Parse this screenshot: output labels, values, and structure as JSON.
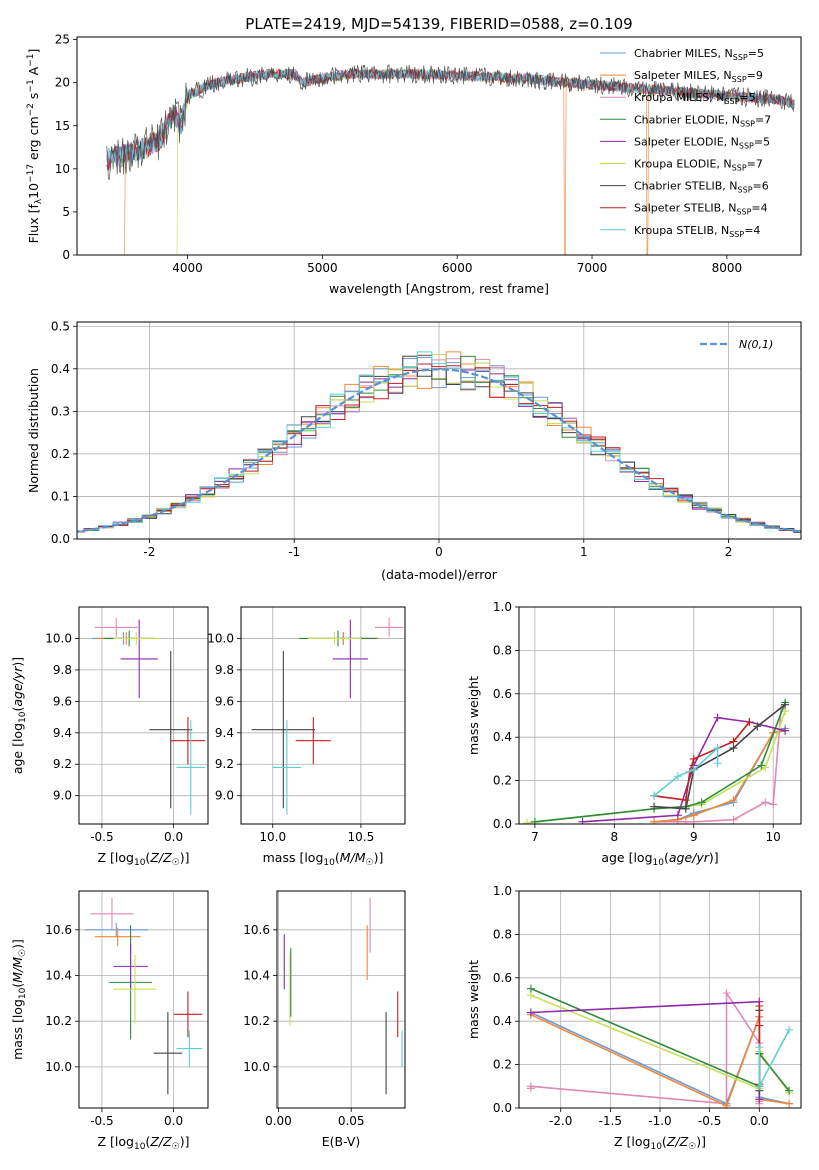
{
  "colors": {
    "Chabrier MILES": "#6a9bd8",
    "Salpeter MILES": "#f0873a",
    "Kroupa MILES": "#e08ab6",
    "Chabrier ELODIE": "#2e8b3c",
    "Salpeter ELODIE": "#8e2aa8",
    "Kroupa ELODIE": "#c6e05a",
    "Chabrier STELIB": "#444444",
    "Salpeter STELIB": "#c41e1e",
    "Kroupa STELIB": "#5ed0d4"
  },
  "chart_data": [
    {
      "id": "spectrum",
      "type": "line",
      "title": "PLATE=2419, MJD=54139, FIBERID=0588, z=0.109",
      "xlabel": "wavelength [Angstrom, rest frame]",
      "ylabel": "Flux [f_λ10^-17 erg cm^-2 s^-1 A^-1]",
      "xlim": [
        3180,
        8550
      ],
      "ylim": [
        0,
        25.3
      ],
      "xticks": [
        4000,
        5000,
        6000,
        7000,
        8000
      ],
      "yticks": [
        0,
        5,
        10,
        15,
        20,
        25
      ],
      "legend": [
        {
          "label": "Chabrier MILES, N",
          "sub": "SSP",
          "val": "=5",
          "color": "Chabrier MILES"
        },
        {
          "label": "Salpeter MILES, N",
          "sub": "SSP",
          "val": "=9",
          "color": "Salpeter MILES"
        },
        {
          "label": "Kroupa MILES, N",
          "sub": "SSP",
          "val": "=5",
          "color": "Kroupa MILES"
        },
        {
          "label": "Chabrier ELODIE, N",
          "sub": "SSP",
          "val": "=7",
          "color": "Chabrier ELODIE"
        },
        {
          "label": "Salpeter ELODIE, N",
          "sub": "SSP",
          "val": "=5",
          "color": "Salpeter ELODIE"
        },
        {
          "label": "Kroupa ELODIE, N",
          "sub": "SSP",
          "val": "=7",
          "color": "Kroupa ELODIE"
        },
        {
          "label": "Chabrier STELIB, N",
          "sub": "SSP",
          "val": "=6",
          "color": "Chabrier STELIB"
        },
        {
          "label": "Salpeter STELIB, N",
          "sub": "SSP",
          "val": "=4",
          "color": "Salpeter STELIB"
        },
        {
          "label": "Kroupa STELIB, N",
          "sub": "SSP",
          "val": "=4",
          "color": "Kroupa STELIB"
        }
      ],
      "continuum": [
        [
          3400,
          11.0
        ],
        [
          3700,
          12.5
        ],
        [
          3800,
          13.5
        ],
        [
          3900,
          16.5
        ],
        [
          3950,
          15.0
        ],
        [
          4000,
          18.5
        ],
        [
          4200,
          20.0
        ],
        [
          4400,
          20.5
        ],
        [
          4600,
          21.0
        ],
        [
          4800,
          21.0
        ],
        [
          4850,
          20.0
        ],
        [
          5000,
          20.5
        ],
        [
          5200,
          21.0
        ],
        [
          5500,
          21.0
        ],
        [
          5800,
          21.0
        ],
        [
          6000,
          20.8
        ],
        [
          6500,
          20.5
        ],
        [
          6800,
          20.0
        ],
        [
          7200,
          19.5
        ],
        [
          7600,
          19.0
        ],
        [
          8000,
          18.5
        ],
        [
          8400,
          18.0
        ],
        [
          8500,
          17.5
        ]
      ],
      "cutoffs": [
        {
          "series": "Salpeter MILES",
          "x": 3530
        },
        {
          "series": "Kroupa ELODIE",
          "x": 3920
        },
        {
          "series": "Salpeter MILES",
          "x": 6800
        },
        {
          "series": "Salpeter MILES",
          "x": 7410
        }
      ]
    },
    {
      "id": "residuals",
      "type": "histogram",
      "xlabel": "(data-model)/error",
      "ylabel": "Normed distribution",
      "xlim": [
        -2.5,
        2.5
      ],
      "ylim": [
        0,
        0.51
      ],
      "xticks": [
        -2,
        -1,
        0,
        1,
        2
      ],
      "yticks": [
        0.0,
        0.1,
        0.2,
        0.3,
        0.4,
        0.5
      ],
      "bin_width": 0.1,
      "legend": "N(0,1)",
      "gaussian": {
        "mu": 0,
        "sigma": 1,
        "color": "#5b8fd6"
      }
    },
    {
      "id": "age-vs-Z",
      "type": "errorbar",
      "xlabel": "Z [log10(Z/Z☉)]",
      "ylabel": "age [log10(age/yr)]",
      "xlim": [
        -0.66,
        0.24
      ],
      "ylim": [
        8.82,
        10.2
      ],
      "xticks": [
        -0.5,
        0.0
      ],
      "yticks": [
        9.0,
        9.2,
        9.4,
        9.6,
        9.8,
        10.0
      ],
      "points": [
        {
          "series": "Chabrier MILES",
          "x": -0.35,
          "xerr": 0.22,
          "y": 10.0,
          "yerr": 0.04
        },
        {
          "series": "Salpeter MILES",
          "x": -0.33,
          "xerr": 0.2,
          "y": 10.0,
          "yerr": 0.04
        },
        {
          "series": "Kroupa MILES",
          "x": -0.4,
          "xerr": 0.15,
          "y": 10.07,
          "yerr": 0.06
        },
        {
          "series": "Chabrier ELODIE",
          "x": -0.31,
          "xerr": 0.18,
          "y": 10.0,
          "yerr": 0.05
        },
        {
          "series": "Salpeter ELODIE",
          "x": -0.24,
          "xerr": 0.13,
          "y": 9.87,
          "yerr": 0.25
        },
        {
          "series": "Kroupa ELODIE",
          "x": -0.26,
          "xerr": 0.16,
          "y": 10.0,
          "yerr": 0.04
        },
        {
          "series": "Chabrier STELIB",
          "x": -0.02,
          "xerr": 0.15,
          "y": 9.42,
          "yerr": 0.5
        },
        {
          "series": "Salpeter STELIB",
          "x": 0.1,
          "xerr": 0.12,
          "y": 9.35,
          "yerr": 0.15
        },
        {
          "series": "Kroupa STELIB",
          "x": 0.12,
          "xerr": 0.1,
          "y": 9.18,
          "yerr": 0.3
        }
      ]
    },
    {
      "id": "age-vs-mass",
      "type": "errorbar",
      "xlabel": "mass [log10(M/M☉)]",
      "ylabel": "",
      "xlim": [
        9.82,
        10.75
      ],
      "ylim": [
        8.82,
        10.2
      ],
      "xticks": [
        10.0,
        10.5
      ],
      "yticks": [
        9.0,
        9.2,
        9.4,
        9.6,
        9.8,
        10.0
      ],
      "points": [
        {
          "series": "Chabrier MILES",
          "x": 10.4,
          "xerr": 0.2,
          "y": 10.0,
          "yerr": 0.04
        },
        {
          "series": "Salpeter MILES",
          "x": 10.4,
          "xerr": 0.2,
          "y": 10.0,
          "yerr": 0.04
        },
        {
          "series": "Kroupa MILES",
          "x": 10.66,
          "xerr": 0.08,
          "y": 10.07,
          "yerr": 0.06
        },
        {
          "series": "Chabrier ELODIE",
          "x": 10.37,
          "xerr": 0.22,
          "y": 10.0,
          "yerr": 0.05
        },
        {
          "series": "Salpeter ELODIE",
          "x": 10.44,
          "xerr": 0.1,
          "y": 9.87,
          "yerr": 0.25
        },
        {
          "series": "Kroupa ELODIE",
          "x": 10.35,
          "xerr": 0.15,
          "y": 10.0,
          "yerr": 0.04
        },
        {
          "series": "Chabrier STELIB",
          "x": 10.06,
          "xerr": 0.18,
          "y": 9.42,
          "yerr": 0.5
        },
        {
          "series": "Salpeter STELIB",
          "x": 10.23,
          "xerr": 0.1,
          "y": 9.35,
          "yerr": 0.15
        },
        {
          "series": "Kroupa STELIB",
          "x": 10.08,
          "xerr": 0.08,
          "y": 9.18,
          "yerr": 0.3
        }
      ]
    },
    {
      "id": "massweight-vs-age",
      "type": "line",
      "xlabel": "age [log10(age/yr)]",
      "ylabel": "mass weight",
      "xlim": [
        6.8,
        10.35
      ],
      "ylim": [
        0,
        1.0
      ],
      "xticks": [
        7,
        8,
        9,
        10
      ],
      "yticks": [
        0.0,
        0.2,
        0.4,
        0.6,
        0.8,
        1.0
      ],
      "series": [
        {
          "series": "Kroupa MILES",
          "x": [
            8.5,
            8.9,
            9.0,
            9.5,
            9.9,
            10.0,
            10.1
          ],
          "y": [
            0.01,
            0.01,
            0.01,
            0.02,
            0.1,
            0.09,
            0.53
          ]
        },
        {
          "series": "Chabrier MILES",
          "x": [
            8.5,
            8.8,
            9.0,
            9.5,
            10.0,
            10.15
          ],
          "y": [
            0.01,
            0.02,
            0.05,
            0.1,
            0.42,
            0.44
          ]
        },
        {
          "series": "Salpeter MILES",
          "x": [
            8.5,
            8.8,
            9.0,
            9.5,
            10.0,
            10.15
          ],
          "y": [
            0.01,
            0.02,
            0.04,
            0.11,
            0.42,
            0.43
          ]
        },
        {
          "series": "Kroupa ELODIE",
          "x": [
            6.9,
            8.5,
            8.9,
            9.1,
            9.9,
            10.15
          ],
          "y": [
            0.005,
            0.07,
            0.08,
            0.09,
            0.26,
            0.52
          ]
        },
        {
          "series": "Chabrier ELODIE",
          "x": [
            7.0,
            8.5,
            8.9,
            9.1,
            9.85,
            10.15
          ],
          "y": [
            0.01,
            0.07,
            0.08,
            0.1,
            0.27,
            0.56
          ]
        },
        {
          "series": "Salpeter ELODIE",
          "x": [
            7.6,
            8.8,
            9.0,
            9.3,
            9.7,
            10.15
          ],
          "y": [
            0.01,
            0.04,
            0.27,
            0.49,
            0.47,
            0.43
          ]
        },
        {
          "series": "Chabrier STELIB",
          "x": [
            8.5,
            8.9,
            9.0,
            9.5,
            9.8,
            10.15
          ],
          "y": [
            0.08,
            0.07,
            0.25,
            0.35,
            0.45,
            0.55
          ]
        },
        {
          "series": "Salpeter STELIB",
          "x": [
            8.5,
            8.9,
            8.95,
            9.0,
            9.5,
            9.7
          ],
          "y": [
            0.13,
            0.11,
            0.24,
            0.3,
            0.38,
            0.47
          ]
        },
        {
          "series": "Kroupa STELIB",
          "x": [
            8.5,
            8.8,
            9.0,
            9.3,
            9.3
          ],
          "y": [
            0.13,
            0.22,
            0.25,
            0.35,
            0.28
          ]
        }
      ]
    },
    {
      "id": "mass-vs-Z",
      "type": "errorbar",
      "xlabel": "Z [log10(Z/Z☉)]",
      "ylabel": "mass [log10(M/M☉)]",
      "xlim": [
        -0.66,
        0.24
      ],
      "ylim": [
        9.82,
        10.77
      ],
      "xticks": [
        -0.5,
        0.0
      ],
      "yticks": [
        10.0,
        10.2,
        10.4,
        10.6
      ],
      "points": [
        {
          "series": "Chabrier MILES",
          "x": -0.4,
          "xerr": 0.22,
          "y": 10.6,
          "yerr": 0.03
        },
        {
          "series": "Salpeter MILES",
          "x": -0.39,
          "xerr": 0.16,
          "y": 10.57,
          "yerr": 0.04
        },
        {
          "series": "Kroupa MILES",
          "x": -0.43,
          "xerr": 0.15,
          "y": 10.67,
          "yerr": 0.07
        },
        {
          "series": "Chabrier ELODIE",
          "x": -0.3,
          "xerr": 0.15,
          "y": 10.37,
          "yerr": 0.25
        },
        {
          "series": "Salpeter ELODIE",
          "x": -0.3,
          "xerr": 0.12,
          "y": 10.44,
          "yerr": 0.1
        },
        {
          "series": "Kroupa ELODIE",
          "x": -0.27,
          "xerr": 0.15,
          "y": 10.34,
          "yerr": 0.15
        },
        {
          "series": "Chabrier STELIB",
          "x": -0.04,
          "xerr": 0.1,
          "y": 10.06,
          "yerr": 0.18
        },
        {
          "series": "Salpeter STELIB",
          "x": 0.1,
          "xerr": 0.1,
          "y": 10.23,
          "yerr": 0.1
        },
        {
          "series": "Kroupa STELIB",
          "x": 0.11,
          "xerr": 0.09,
          "y": 10.08,
          "yerr": 0.08
        }
      ]
    },
    {
      "id": "mass-vs-EBV",
      "type": "errorbar",
      "xlabel": "E(B-V)",
      "ylabel": "",
      "xlim": [
        -0.001,
        0.087
      ],
      "ylim": [
        9.82,
        10.77
      ],
      "xticks": [
        0.0,
        0.05
      ],
      "yticks": [
        10.0,
        10.2,
        10.4,
        10.6
      ],
      "points": [
        {
          "series": "Salpeter ELODIE",
          "x": 0.004,
          "xerr": 0,
          "y": 10.46,
          "yerr": 0.12
        },
        {
          "series": "Kroupa ELODIE",
          "x": 0.008,
          "xerr": 0,
          "y": 10.34,
          "yerr": 0.16
        },
        {
          "series": "Chabrier ELODIE",
          "x": 0.0085,
          "xerr": 0,
          "y": 10.37,
          "yerr": 0.15
        },
        {
          "series": "Salpeter MILES",
          "x": 0.061,
          "xerr": 0,
          "y": 10.5,
          "yerr": 0.12
        },
        {
          "series": "Kroupa MILES",
          "x": 0.063,
          "xerr": 0,
          "y": 10.62,
          "yerr": 0.12
        },
        {
          "series": "Chabrier STELIB",
          "x": 0.074,
          "xerr": 0,
          "y": 10.06,
          "yerr": 0.18
        },
        {
          "series": "Salpeter STELIB",
          "x": 0.082,
          "xerr": 0,
          "y": 10.23,
          "yerr": 0.1
        },
        {
          "series": "Kroupa STELIB",
          "x": 0.085,
          "xerr": 0,
          "y": 10.08,
          "yerr": 0.08
        }
      ]
    },
    {
      "id": "massweight-vs-Z",
      "type": "line",
      "xlabel": "Z [log10(Z/Z☉)]",
      "ylabel": "mass weight",
      "xlim": [
        -2.42,
        0.42
      ],
      "ylim": [
        0,
        1.0
      ],
      "xticks": [
        -2.0,
        -1.5,
        -1.0,
        -0.5,
        0.0
      ],
      "yticks": [
        0.0,
        0.2,
        0.4,
        0.6,
        0.8,
        1.0
      ],
      "series": [
        {
          "series": "Kroupa MILES",
          "x": [
            -2.3,
            -2.3,
            -0.33,
            -0.33,
            0.0,
            0.0,
            0.0,
            0.0
          ],
          "y": [
            0.09,
            0.1,
            0.02,
            0.53,
            0.3,
            0.09,
            0.03,
            0.02
          ]
        },
        {
          "series": "Chabrier MILES",
          "x": [
            -2.3,
            -0.33,
            0.0,
            0.0,
            0.0,
            0.3
          ],
          "y": [
            0.44,
            0.02,
            0.42,
            0.1,
            0.05,
            0.02
          ]
        },
        {
          "series": "Salpeter MILES",
          "x": [
            -2.3,
            -0.33,
            0.0,
            0.0,
            0.0,
            0.3
          ],
          "y": [
            0.43,
            0.01,
            0.42,
            0.1,
            0.04,
            0.02
          ]
        },
        {
          "series": "Kroupa ELODIE",
          "x": [
            -2.3,
            0.0,
            0.0,
            0.3
          ],
          "y": [
            0.52,
            0.09,
            0.26,
            0.07
          ]
        },
        {
          "series": "Chabrier ELODIE",
          "x": [
            -2.3,
            0.0,
            0.0,
            0.3
          ],
          "y": [
            0.55,
            0.1,
            0.25,
            0.08
          ]
        },
        {
          "series": "Salpeter ELODIE",
          "x": [
            -2.3,
            0.0,
            0.0
          ],
          "y": [
            0.44,
            0.49,
            0.04
          ]
        },
        {
          "series": "Chabrier STELIB",
          "x": [
            0.0,
            0.0,
            0.0
          ],
          "y": [
            0.45,
            0.25,
            0.08
          ]
        },
        {
          "series": "Salpeter STELIB",
          "x": [
            0.0,
            0.0,
            0.0
          ],
          "y": [
            0.47,
            0.38,
            0.11
          ]
        },
        {
          "series": "Kroupa STELIB",
          "x": [
            0.0,
            0.0,
            0.3
          ],
          "y": [
            0.28,
            0.1,
            0.36
          ]
        }
      ]
    }
  ]
}
